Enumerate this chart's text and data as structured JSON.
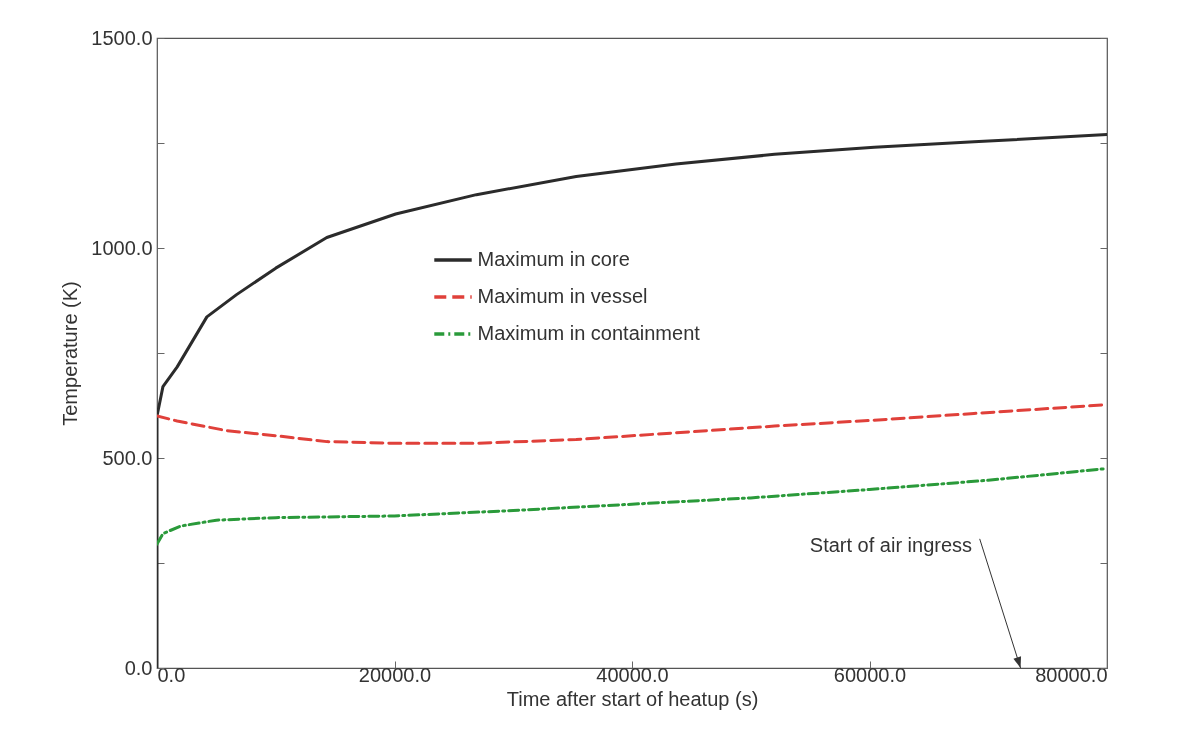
{
  "chart_data": {
    "type": "line",
    "xlabel": "Time after start of heatup (s)",
    "ylabel": "Temperature (K)",
    "xlim": [
      0,
      80000
    ],
    "ylim": [
      0,
      1500
    ],
    "xticks": [
      {
        "value": 0,
        "label": "0.0"
      },
      {
        "value": 20000,
        "label": "20000.0"
      },
      {
        "value": 40000,
        "label": "40000.0"
      },
      {
        "value": 60000,
        "label": "60000.0"
      },
      {
        "value": 80000,
        "label": "80000.0"
      }
    ],
    "yticks": [
      {
        "value": 0,
        "label": "0.0"
      },
      {
        "value": 250,
        "label": null
      },
      {
        "value": 500,
        "label": "500.0"
      },
      {
        "value": 750,
        "label": null
      },
      {
        "value": 1000,
        "label": "1000.0"
      },
      {
        "value": 1250,
        "label": null
      },
      {
        "value": 1500,
        "label": "1500.0"
      }
    ],
    "grid": false,
    "legend": "top",
    "marker": "none",
    "series": [
      {
        "name": "Maximum in core",
        "color": "#2b2b2b",
        "line_style": "solid",
        "x": [
          0,
          0,
          500,
          1700,
          4200,
          6700,
          10000,
          14300,
          20100,
          26900,
          35300,
          43700,
          52000,
          60400,
          68800,
          80000
        ],
        "values": [
          0,
          600,
          670,
          717,
          836,
          889,
          952,
          1025,
          1081,
          1127,
          1170,
          1200,
          1223,
          1240,
          1253,
          1270
        ]
      },
      {
        "name": "Maximum in vessel",
        "color": "#e0403a",
        "line_style": "dashed",
        "x": [
          0,
          1700,
          5900,
          10000,
          14300,
          20000,
          26900,
          35300,
          43700,
          52000,
          60400,
          68800,
          80000
        ],
        "values": [
          600,
          588,
          565,
          553,
          539,
          535,
          535,
          544,
          560,
          576,
          590,
          606,
          627
        ]
      },
      {
        "name": "Maximum in containment",
        "color": "#2a9a3a",
        "line_style": "dashdot",
        "x": [
          0,
          500,
          2000,
          5000,
          10000,
          20000,
          30000,
          40000,
          50000,
          60000,
          70000,
          80000
        ],
        "values": [
          295,
          320,
          338,
          352,
          358,
          362,
          375,
          390,
          405,
          425,
          447,
          475
        ]
      }
    ],
    "annotations": [
      "Start of air ingress"
    ]
  }
}
